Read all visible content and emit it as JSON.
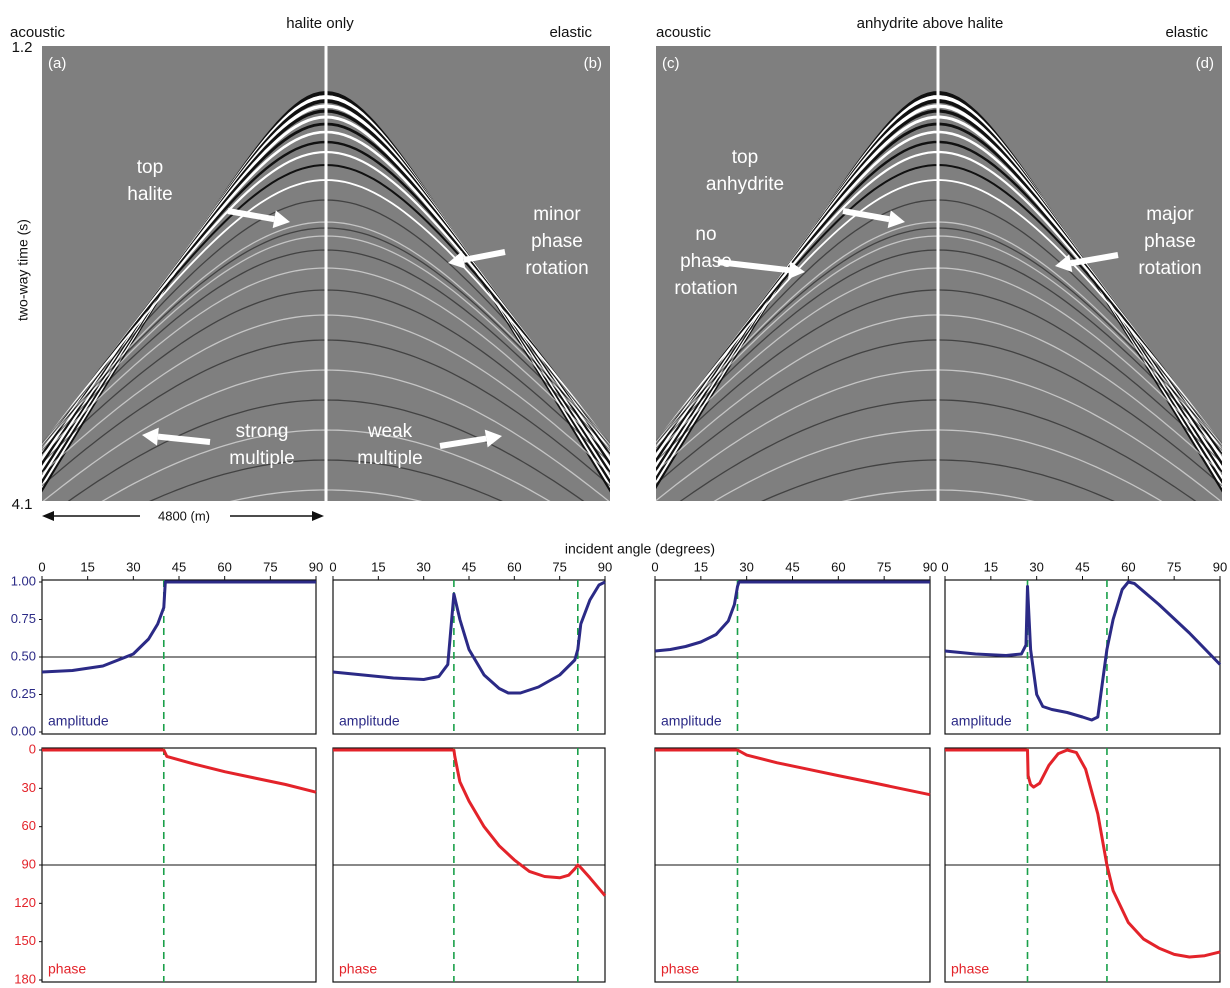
{
  "figure": {
    "xlabel": "incident angle (degrees)",
    "ylabel": "two-way time (s)",
    "time_top": "1.2",
    "time_bottom": "4.1",
    "offset_label": "4800 (m)",
    "panels": [
      {
        "title": "halite only",
        "left": "acoustic",
        "right": "elastic",
        "left_tag": "(a)",
        "right_tag": "(b)",
        "annotations": [
          [
            "top",
            "halite"
          ],
          [
            "minor",
            "phase",
            "rotation"
          ],
          [
            "strong",
            "multiple"
          ],
          [
            "weak",
            "multiple"
          ]
        ]
      },
      {
        "title": "anhydrite above halite",
        "left": "acoustic",
        "right": "elastic",
        "left_tag": "(c)",
        "right_tag": "(d)",
        "annotations": [
          [
            "top",
            "anhydrite"
          ],
          [
            "no",
            "phase",
            "rotation"
          ],
          [
            "major",
            "phase",
            "rotation"
          ]
        ]
      }
    ]
  },
  "chart_data": [
    {
      "type": "line",
      "xlim": [
        0,
        90
      ],
      "ylim": [
        0,
        1
      ],
      "xticks": [
        0,
        15,
        30,
        45,
        60,
        75,
        90
      ],
      "yticks": [
        {
          "value": 0,
          "label": "0.00"
        },
        {
          "value": 0.25,
          "label": "0.25"
        },
        {
          "value": 0.5,
          "label": "0.50"
        },
        {
          "value": 0.75,
          "label": "0.75"
        },
        {
          "value": 1,
          "label": "1.00"
        }
      ],
      "hline": 0.5,
      "vlines": [
        40
      ],
      "x": [
        0,
        10,
        20,
        30,
        35,
        38,
        40,
        40.5,
        50,
        60,
        70,
        80,
        90
      ],
      "series": [
        {
          "name": "amplitude",
          "color": "#2b2a86",
          "values": [
            0.4,
            0.41,
            0.44,
            0.52,
            0.62,
            0.72,
            0.83,
            1.0,
            1.0,
            1.0,
            1.0,
            1.0,
            1.0
          ]
        }
      ]
    },
    {
      "type": "line",
      "xlim": [
        0,
        90
      ],
      "ylim": [
        0,
        1
      ],
      "xticks": [
        0,
        15,
        30,
        45,
        60,
        75,
        90
      ],
      "hline": 0.5,
      "vlines": [
        40,
        81
      ],
      "x": [
        0,
        10,
        20,
        30,
        35,
        38,
        40,
        42,
        45,
        50,
        55,
        58,
        62,
        68,
        75,
        80,
        81,
        82,
        85,
        88,
        90
      ],
      "series": [
        {
          "name": "amplitude",
          "color": "#2b2a86",
          "values": [
            0.4,
            0.38,
            0.36,
            0.35,
            0.37,
            0.45,
            0.92,
            0.75,
            0.55,
            0.38,
            0.29,
            0.26,
            0.26,
            0.3,
            0.38,
            0.48,
            0.55,
            0.72,
            0.88,
            0.98,
            1.0
          ]
        }
      ]
    },
    {
      "type": "line",
      "xlim": [
        0,
        90
      ],
      "ylim": [
        0,
        1
      ],
      "xticks": [
        0,
        15,
        30,
        45,
        60,
        75,
        90
      ],
      "hline": 0.5,
      "vlines": [
        27
      ],
      "x": [
        0,
        5,
        10,
        15,
        20,
        24,
        26,
        27,
        27.5,
        40,
        60,
        80,
        90
      ],
      "series": [
        {
          "name": "amplitude",
          "color": "#2b2a86",
          "values": [
            0.54,
            0.55,
            0.57,
            0.6,
            0.65,
            0.74,
            0.85,
            0.97,
            1.0,
            1.0,
            1.0,
            1.0,
            1.0
          ]
        }
      ]
    },
    {
      "type": "line",
      "xlim": [
        0,
        90
      ],
      "ylim": [
        0,
        1
      ],
      "xticks": [
        0,
        15,
        30,
        45,
        60,
        75,
        90
      ],
      "hline": 0.5,
      "vlines": [
        27,
        53
      ],
      "x": [
        0,
        10,
        20,
        25,
        26.5,
        27,
        28,
        30,
        32,
        35,
        40,
        45,
        48,
        50,
        51,
        53,
        55,
        58,
        60,
        62,
        70,
        80,
        90
      ],
      "series": [
        {
          "name": "amplitude",
          "color": "#2b2a86",
          "values": [
            0.54,
            0.52,
            0.51,
            0.52,
            0.58,
            0.97,
            0.55,
            0.25,
            0.17,
            0.15,
            0.13,
            0.1,
            0.08,
            0.1,
            0.25,
            0.55,
            0.75,
            0.95,
            1.0,
            0.99,
            0.85,
            0.66,
            0.45
          ]
        }
      ]
    },
    {
      "type": "line",
      "xlim": [
        0,
        90
      ],
      "ylim": [
        180,
        0
      ],
      "yticks": [
        0,
        30,
        60,
        90,
        120,
        150,
        180
      ],
      "hline": 90,
      "vlines": [
        40
      ],
      "x": [
        0,
        20,
        40,
        41,
        50,
        60,
        70,
        80,
        90
      ],
      "series": [
        {
          "name": "phase",
          "color": "#e3232a",
          "values": [
            0,
            0,
            0,
            5,
            11,
            17,
            22,
            27,
            33
          ]
        }
      ]
    },
    {
      "type": "line",
      "xlim": [
        0,
        90
      ],
      "ylim": [
        180,
        0
      ],
      "hline": 90,
      "vlines": [
        40,
        81
      ],
      "x": [
        0,
        20,
        40,
        40.3,
        42,
        45,
        50,
        55,
        60,
        65,
        70,
        75,
        78,
        80,
        81,
        82,
        85,
        90
      ],
      "series": [
        {
          "name": "phase",
          "color": "#e3232a",
          "values": [
            0,
            0,
            0,
            5,
            25,
            40,
            60,
            75,
            86,
            95,
            99,
            100,
            98,
            93,
            90,
            92,
            100,
            114
          ]
        }
      ]
    },
    {
      "type": "line",
      "xlim": [
        0,
        90
      ],
      "ylim": [
        180,
        0
      ],
      "hline": 90,
      "vlines": [
        27
      ],
      "x": [
        0,
        15,
        27,
        30,
        40,
        50,
        60,
        70,
        80,
        90
      ],
      "series": [
        {
          "name": "phase",
          "color": "#e3232a",
          "values": [
            0,
            0,
            0,
            4,
            10,
            15,
            20,
            25,
            30,
            35
          ]
        }
      ]
    },
    {
      "type": "line",
      "xlim": [
        0,
        90
      ],
      "ylim": [
        180,
        0
      ],
      "hline": 90,
      "vlines": [
        27,
        53
      ],
      "x": [
        0,
        15,
        27,
        27.2,
        28,
        29,
        31,
        34,
        37,
        40,
        43,
        46,
        50,
        53,
        55,
        60,
        65,
        70,
        75,
        80,
        85,
        90
      ],
      "series": [
        {
          "name": "phase",
          "color": "#e3232a",
          "values": [
            0,
            0,
            0,
            20,
            27,
            29,
            26,
            12,
            3,
            0,
            2,
            15,
            50,
            90,
            110,
            135,
            148,
            155,
            160,
            162,
            161,
            158
          ]
        }
      ]
    }
  ]
}
